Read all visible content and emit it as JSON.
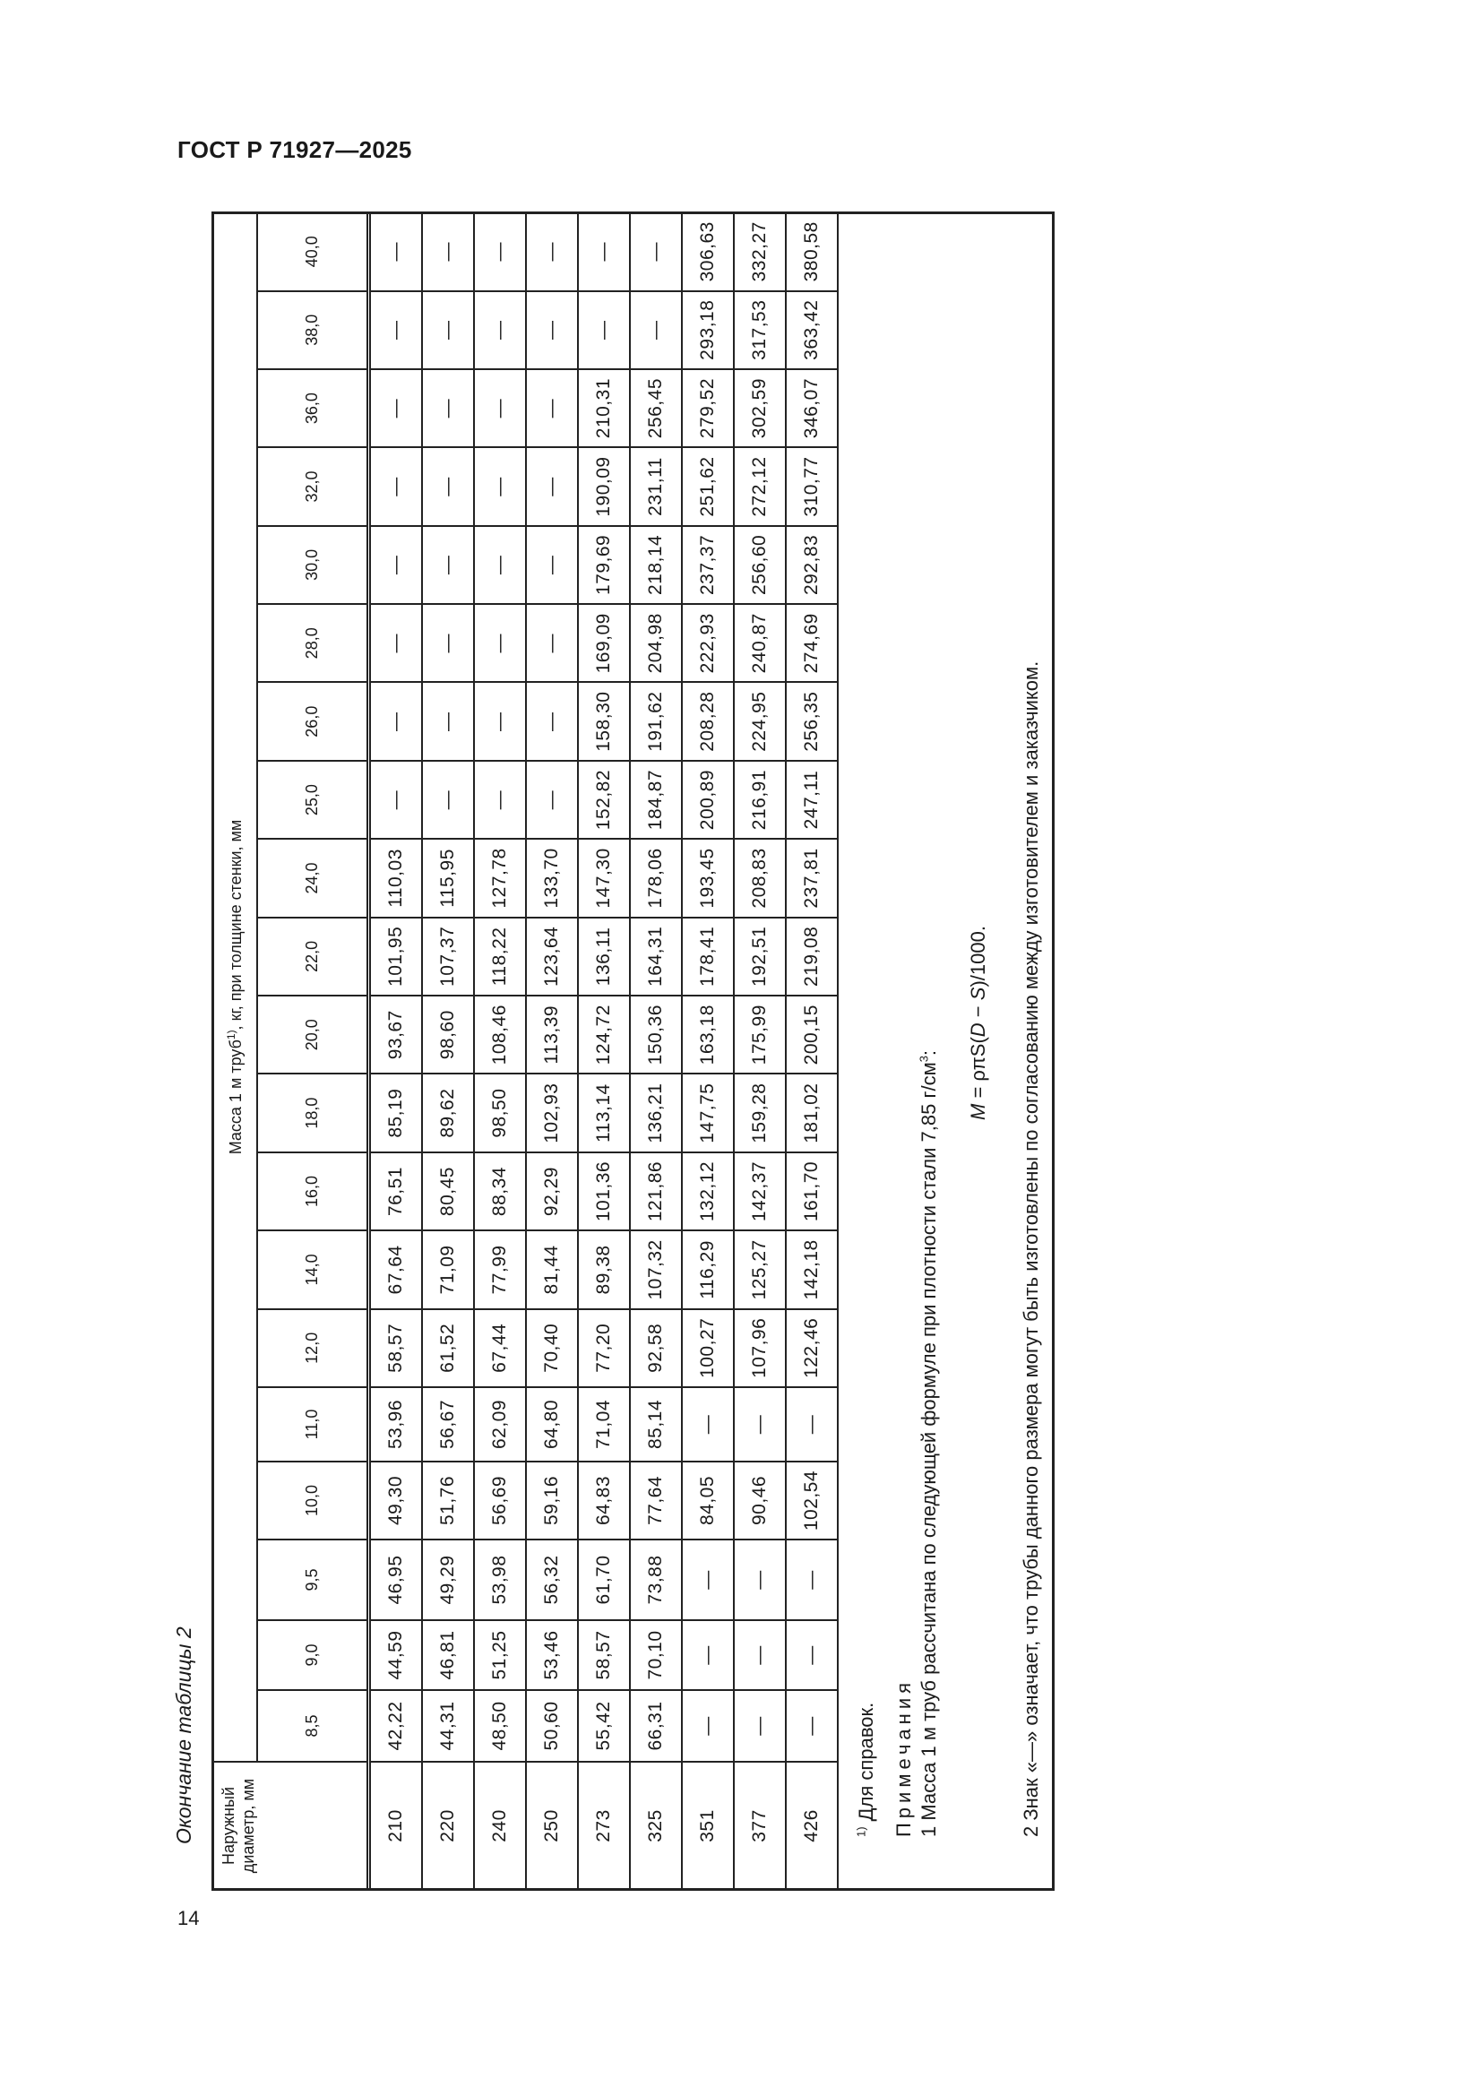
{
  "header": {
    "title": "ГОСТ Р 71927—2025"
  },
  "page_number": "14",
  "caption": "Окончание таблицы 2",
  "table": {
    "diameter_header": "Наружный диаметр, мм",
    "mass_header_pre": "Масса 1 м труб",
    "mass_header_sup": "1)",
    "mass_header_post": ", кг, при толщине стенки, мм",
    "thickness": [
      "8,5",
      "9,0",
      "9,5",
      "10,0",
      "11,0",
      "12,0",
      "14,0",
      "16,0",
      "18,0",
      "20,0",
      "22,0",
      "24,0",
      "25,0",
      "26,0",
      "28,0",
      "30,0",
      "32,0",
      "36,0",
      "38,0",
      "40,0"
    ],
    "rows": [
      {
        "d": "210",
        "v": [
          "42,22",
          "44,59",
          "46,95",
          "49,30",
          "53,96",
          "58,57",
          "67,64",
          "76,51",
          "85,19",
          "93,67",
          "101,95",
          "110,03",
          "—",
          "—",
          "—",
          "—",
          "—",
          "—",
          "—",
          "—"
        ]
      },
      {
        "d": "220",
        "v": [
          "44,31",
          "46,81",
          "49,29",
          "51,76",
          "56,67",
          "61,52",
          "71,09",
          "80,45",
          "89,62",
          "98,60",
          "107,37",
          "115,95",
          "—",
          "—",
          "—",
          "—",
          "—",
          "—",
          "—",
          "—"
        ]
      },
      {
        "d": "240",
        "v": [
          "48,50",
          "51,25",
          "53,98",
          "56,69",
          "62,09",
          "67,44",
          "77,99",
          "88,34",
          "98,50",
          "108,46",
          "118,22",
          "127,78",
          "—",
          "—",
          "—",
          "—",
          "—",
          "—",
          "—",
          "—"
        ]
      },
      {
        "d": "250",
        "v": [
          "50,60",
          "53,46",
          "56,32",
          "59,16",
          "64,80",
          "70,40",
          "81,44",
          "92,29",
          "102,93",
          "113,39",
          "123,64",
          "133,70",
          "—",
          "—",
          "—",
          "—",
          "—",
          "—",
          "—",
          "—"
        ]
      },
      {
        "d": "273",
        "v": [
          "55,42",
          "58,57",
          "61,70",
          "64,83",
          "71,04",
          "77,20",
          "89,38",
          "101,36",
          "113,14",
          "124,72",
          "136,11",
          "147,30",
          "152,82",
          "158,30",
          "169,09",
          "179,69",
          "190,09",
          "210,31",
          "—",
          "—"
        ]
      },
      {
        "d": "325",
        "v": [
          "66,31",
          "70,10",
          "73,88",
          "77,64",
          "85,14",
          "92,58",
          "107,32",
          "121,86",
          "136,21",
          "150,36",
          "164,31",
          "178,06",
          "184,87",
          "191,62",
          "204,98",
          "218,14",
          "231,11",
          "256,45",
          "—",
          "—"
        ]
      },
      {
        "d": "351",
        "v": [
          "—",
          "—",
          "—",
          "84,05",
          "—",
          "100,27",
          "116,29",
          "132,12",
          "147,75",
          "163,18",
          "178,41",
          "193,45",
          "200,89",
          "208,28",
          "222,93",
          "237,37",
          "251,62",
          "279,52",
          "293,18",
          "306,63"
        ]
      },
      {
        "d": "377",
        "v": [
          "—",
          "—",
          "—",
          "90,46",
          "—",
          "107,96",
          "125,27",
          "142,37",
          "159,28",
          "175,99",
          "192,51",
          "208,83",
          "216,91",
          "224,95",
          "240,87",
          "256,60",
          "272,12",
          "302,59",
          "317,53",
          "332,27"
        ]
      },
      {
        "d": "426",
        "v": [
          "—",
          "—",
          "—",
          "102,54",
          "—",
          "122,46",
          "142,18",
          "161,70",
          "181,02",
          "200,15",
          "219,08",
          "237,81",
          "247,11",
          "256,35",
          "274,69",
          "292,83",
          "310,77",
          "346,07",
          "363,42",
          "380,58"
        ]
      }
    ]
  },
  "notes": {
    "footnote_mark": "1)",
    "footnote_text": " Для справок.",
    "heading": "Примечания",
    "note1_pre": "1 Масса 1 м труб рассчитана по следующей формуле при плотности стали 7,85 г/см",
    "note1_sup": "3",
    "note1_post": ":",
    "formula_m": "M",
    "formula_mid": " = ρπS(",
    "formula_d": "D",
    "formula_minus": " − ",
    "formula_s": "S",
    "formula_end": ")/1000.",
    "note2": "2 Знак «—» означает, что трубы данного размера могут быть изготовлены по согласованию между изготовителем и заказчиком."
  }
}
